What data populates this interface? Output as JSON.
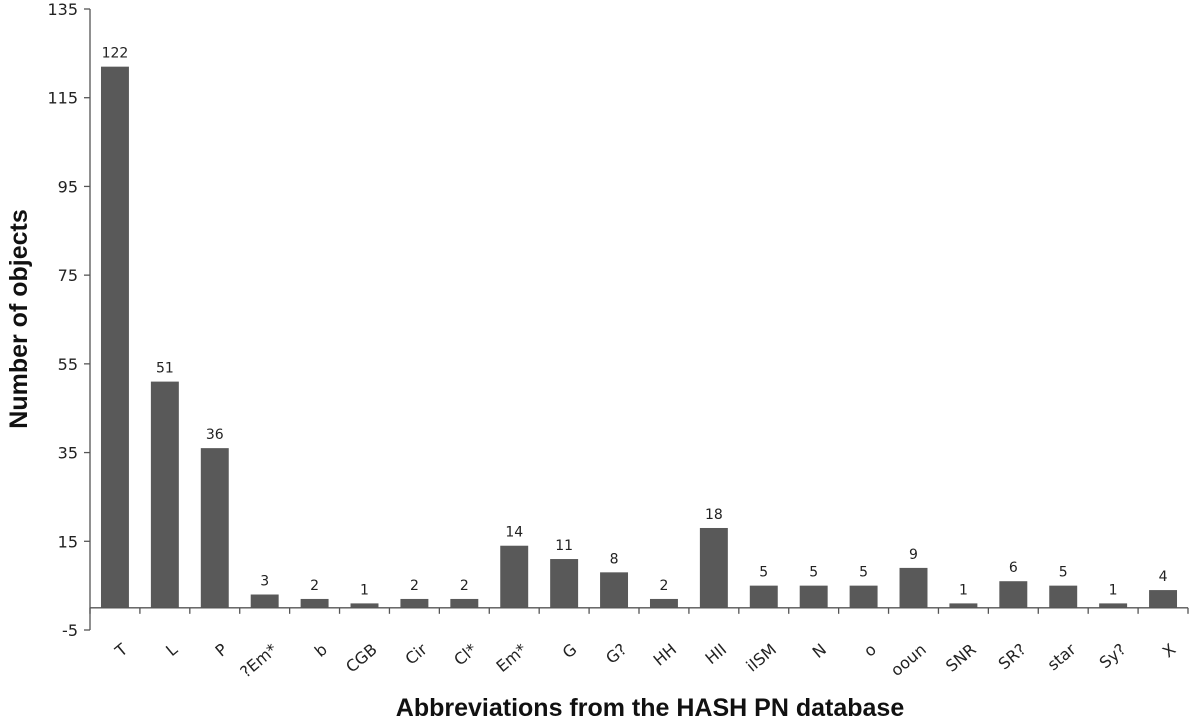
{
  "chart_data": {
    "type": "bar",
    "xlabel": "Abbreviations from the HASH PN database",
    "ylabel": "Number of objects",
    "categories": [
      "T",
      "L",
      "P",
      "?Em*",
      "b",
      "CGB",
      "Cir",
      "Cl*",
      "Em*",
      "G",
      "G?",
      "HH",
      "HII",
      "iISM",
      "N",
      "o",
      "ooun",
      "SNR",
      "SR?",
      "star",
      "Sy?",
      "X"
    ],
    "values": [
      122,
      51,
      36,
      3,
      2,
      1,
      2,
      2,
      14,
      11,
      8,
      2,
      18,
      5,
      5,
      5,
      9,
      1,
      6,
      5,
      1,
      4
    ],
    "ylim": [
      -5,
      135
    ],
    "yticks": [
      -5,
      15,
      35,
      55,
      75,
      95,
      115,
      135
    ],
    "bar_color": "#595959",
    "grid": false,
    "legend": "none"
  }
}
